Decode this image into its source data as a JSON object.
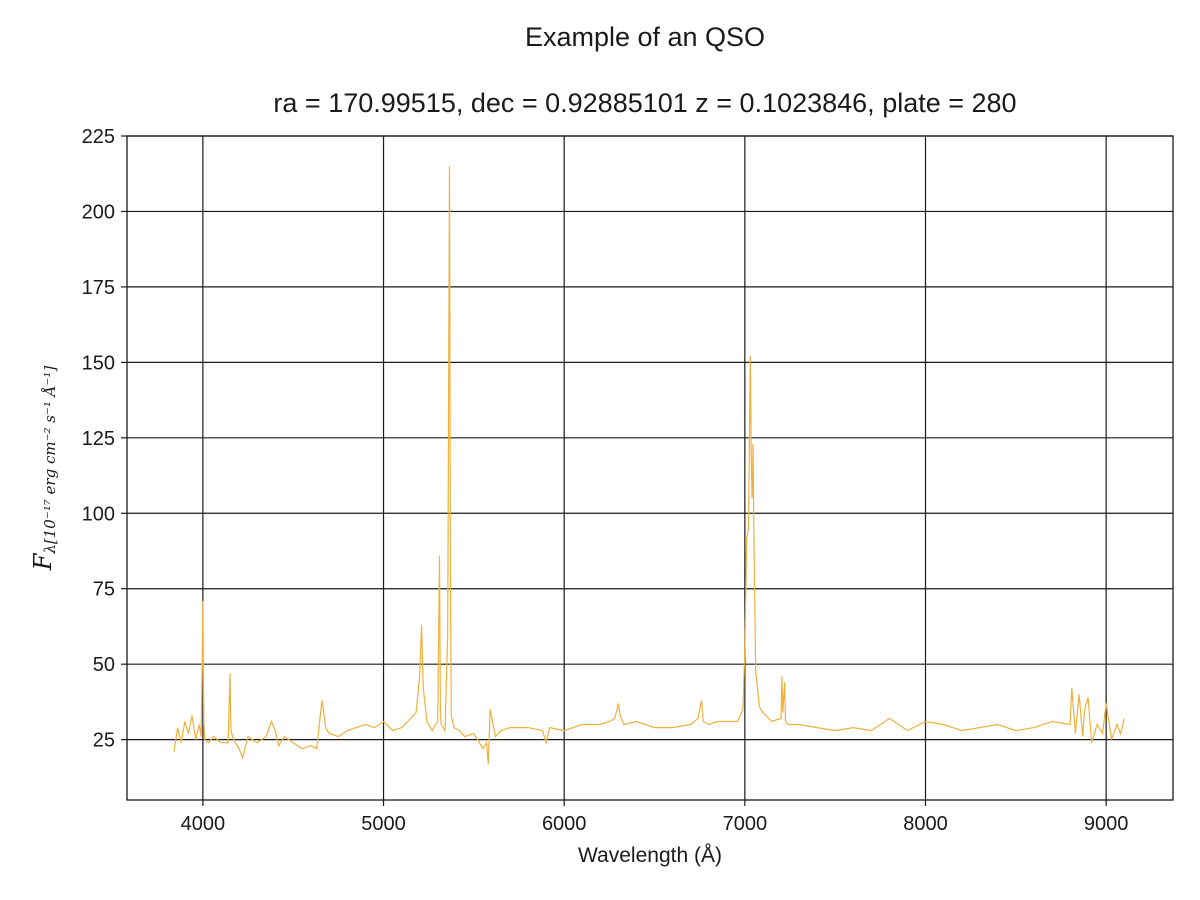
{
  "chart_data": {
    "type": "line",
    "title": "Example of an QSO",
    "subtitle": "ra = 170.99515, dec = 0.92885101 z = 0.1023846, plate = 280",
    "xlabel": "Wavelength (Å)",
    "ylabel_main": "F",
    "ylabel_sub": "λ[10⁻¹⁷ erg cm⁻² s⁻¹ Å⁻¹]",
    "xlim": [
      3580,
      9370
    ],
    "ylim": [
      5,
      225
    ],
    "xticks": [
      4000,
      5000,
      6000,
      7000,
      8000,
      9000
    ],
    "yticks": [
      25,
      50,
      75,
      100,
      125,
      150,
      175,
      200,
      225
    ],
    "grid": true,
    "line_color": "#f0b03c",
    "series": [
      {
        "x": [
          3840,
          3860,
          3880,
          3900,
          3920,
          3940,
          3960,
          3980,
          3990,
          3995,
          4000,
          4005,
          4010,
          4030,
          4060,
          4100,
          4140,
          4150,
          4155,
          4170,
          4200,
          4220,
          4250,
          4300,
          4350,
          4380,
          4400,
          4420,
          4450,
          4500,
          4550,
          4600,
          4630,
          4650,
          4660,
          4680,
          4700,
          4750,
          4800,
          4850,
          4900,
          4950,
          5000,
          5050,
          5100,
          5150,
          5180,
          5200,
          5210,
          5220,
          5240,
          5270,
          5300,
          5310,
          5315,
          5320,
          5340,
          5355,
          5365,
          5370,
          5375,
          5390,
          5420,
          5450,
          5500,
          5550,
          5570,
          5580,
          5590,
          5620,
          5650,
          5700,
          5800,
          5880,
          5900,
          5920,
          6000,
          6100,
          6200,
          6250,
          6280,
          6300,
          6310,
          6330,
          6400,
          6500,
          6600,
          6700,
          6740,
          6760,
          6770,
          6800,
          6850,
          6900,
          6960,
          6990,
          7000,
          7010,
          7020,
          7030,
          7035,
          7040,
          7045,
          7050,
          7055,
          7060,
          7080,
          7100,
          7150,
          7200,
          7205,
          7210,
          7220,
          7225,
          7240,
          7300,
          7400,
          7500,
          7600,
          7700,
          7800,
          7850,
          7900,
          8000,
          8100,
          8200,
          8300,
          8400,
          8500,
          8600,
          8700,
          8800,
          8810,
          8830,
          8850,
          8870,
          8880,
          8900,
          8920,
          8950,
          8980,
          9000,
          9030,
          9060,
          9080,
          9100
        ],
        "y": [
          21,
          29,
          24,
          31,
          27,
          33,
          25,
          30,
          26,
          45,
          71,
          30,
          25,
          24,
          26,
          24,
          24,
          47,
          28,
          25,
          22,
          19,
          26,
          24,
          26,
          31,
          28,
          23,
          26,
          24,
          22,
          23,
          22,
          33,
          38,
          29,
          27,
          26,
          28,
          29,
          30,
          29,
          31,
          28,
          29,
          32,
          34,
          46,
          63,
          42,
          31,
          28,
          31,
          86,
          34,
          30,
          28,
          60,
          215,
          80,
          33,
          29,
          28,
          26,
          27,
          22,
          24,
          17,
          35,
          26,
          28,
          29,
          29,
          28,
          24,
          29,
          28,
          30,
          30,
          31,
          32,
          37,
          33,
          30,
          31,
          29,
          29,
          30,
          32,
          38,
          31,
          30,
          31,
          31,
          31,
          35,
          55,
          92,
          95,
          152,
          120,
          105,
          123,
          93,
          70,
          48,
          36,
          34,
          31,
          32,
          46,
          34,
          44,
          31,
          30,
          30,
          29,
          28,
          29,
          28,
          32,
          30,
          28,
          31,
          30,
          28,
          29,
          30,
          28,
          29,
          31,
          30,
          42,
          27,
          40,
          26,
          35,
          39,
          24,
          30,
          27,
          37,
          25,
          30,
          27,
          32
        ]
      }
    ]
  }
}
